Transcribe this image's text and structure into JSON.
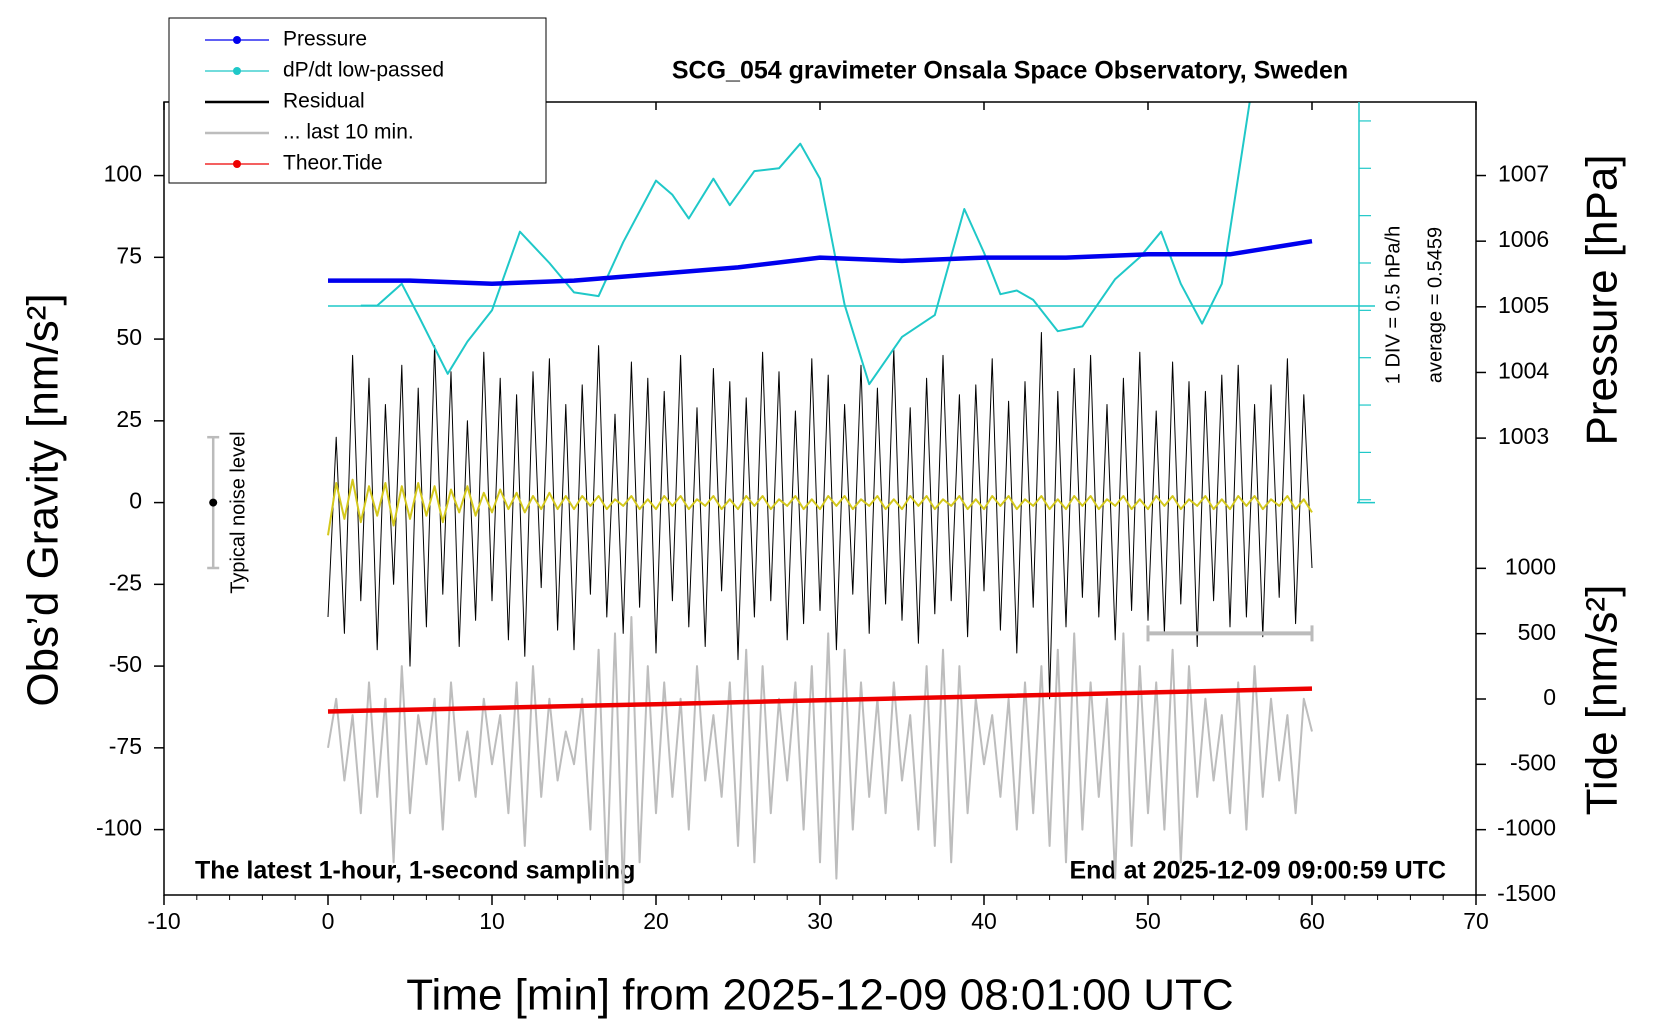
{
  "chart_data": {
    "type": "line",
    "title": "SCG_054 gravimeter Onsala Space Observatory, Sweden",
    "xlabel": "Time [min] from 2025-12-09 08:01:00 UTC",
    "ylabel": "Obs’d Gravity [nm/s²]",
    "y2label": "Pressure [hPa]",
    "y3label": "Tide [nm/s²]",
    "annotations": [
      "The latest 1-hour, 1-second sampling",
      "End at 2025-12-09 09:00:59 UTC",
      "1 DIV = 0.5 hPa/h"
    ],
    "average": {
      "value": 0.5459,
      "label": "average = 0.5459"
    },
    "noise_bar": {
      "x": -7,
      "low": -20,
      "high": 20,
      "center": 0,
      "label": "Typical noise level"
    },
    "scale_bar": {
      "x": [
        50,
        60
      ],
      "y": -40
    },
    "legend": "upper left",
    "xlim": [
      -10,
      70
    ],
    "xticks": [
      -10,
      0,
      10,
      20,
      30,
      40,
      50,
      60,
      70
    ],
    "ylim": [
      -120,
      122.5
    ],
    "yticks": [
      -100,
      -75,
      -50,
      -25,
      0,
      25,
      50,
      75,
      100
    ],
    "y2lim": [
      996.04,
      1008.12
    ],
    "y2ticks": [
      1003,
      1004,
      1005,
      1006,
      1007
    ],
    "y3lim": [
      -1500,
      4569
    ],
    "y3ticks": [
      -1500,
      -1000,
      -500,
      0,
      500,
      1000
    ],
    "y4lim": [
      -1.53,
      2.7
    ],
    "y4ticks": [
      -1.5,
      -1,
      -0.5,
      0,
      0.5,
      1,
      1.5,
      2,
      2.5
    ],
    "x": [
      0,
      0.5,
      1,
      1.5,
      2,
      2.5,
      3,
      3.5,
      4,
      4.5,
      5,
      5.5,
      6,
      6.5,
      7,
      7.5,
      8,
      8.5,
      9,
      9.5,
      10,
      10.5,
      11,
      11.5,
      12,
      12.5,
      13,
      13.5,
      14,
      14.5,
      15,
      15.5,
      16,
      16.5,
      17,
      17.5,
      18,
      18.5,
      19,
      19.5,
      20,
      20.5,
      21,
      21.5,
      22,
      22.5,
      23,
      23.5,
      24,
      24.5,
      25,
      25.5,
      26,
      26.5,
      27,
      27.5,
      28,
      28.5,
      29,
      29.5,
      30,
      30.5,
      31,
      31.5,
      32,
      32.5,
      33,
      33.5,
      34,
      34.5,
      35,
      35.5,
      36,
      36.5,
      37,
      37.5,
      38,
      38.5,
      39,
      39.5,
      40,
      40.5,
      41,
      41.5,
      42,
      42.5,
      43,
      43.5,
      44,
      44.5,
      45,
      45.5,
      46,
      46.5,
      47,
      47.5,
      48,
      48.5,
      49,
      49.5,
      50,
      50.5,
      51,
      51.5,
      52,
      52.5,
      53,
      53.5,
      54,
      54.5,
      55,
      55.5,
      56,
      56.5,
      57,
      57.5,
      58,
      58.5,
      59,
      59.5,
      60
    ],
    "series": [
      {
        "name": "Pressure",
        "color": "#0000ee",
        "axis": "y2",
        "marker": true,
        "x": [
          0,
          5,
          10,
          15,
          20,
          25,
          30,
          35,
          40,
          45,
          50,
          55,
          60
        ],
        "values": [
          1005.4,
          1005.4,
          1005.35,
          1005.4,
          1005.5,
          1005.6,
          1005.75,
          1005.7,
          1005.75,
          1005.75,
          1005.8,
          1005.8,
          1006.0
        ]
      },
      {
        "name": "dP/dt low-passed",
        "color": "#1fc8c8",
        "axis": "y4",
        "marker": true,
        "x": [
          2,
          3,
          4.5,
          5.5,
          7.3,
          8.5,
          10,
          11.7,
          13.5,
          15,
          16.5,
          18,
          20,
          21,
          22,
          23.5,
          24.5,
          26,
          27.5,
          28.8,
          30,
          31.5,
          33,
          35,
          37,
          38.8,
          40,
          41,
          42,
          43,
          44.5,
          46,
          48,
          49.5,
          50.8,
          52,
          53.3,
          54.5,
          56.2
        ],
        "values": [
          0.55,
          0.55,
          0.78,
          0.45,
          -0.17,
          0.17,
          0.5,
          1.33,
          1.0,
          0.69,
          0.65,
          1.22,
          1.87,
          1.72,
          1.47,
          1.89,
          1.61,
          1.97,
          2.0,
          2.26,
          1.89,
          0.56,
          -0.28,
          0.22,
          0.45,
          1.57,
          1.11,
          0.67,
          0.71,
          0.61,
          0.28,
          0.33,
          0.83,
          1.06,
          1.33,
          0.78,
          0.36,
          0.78,
          2.7
        ]
      },
      {
        "name": "Residual",
        "color": "#000000",
        "axis": "y",
        "values": [
          -35,
          20,
          -40,
          45,
          -30,
          38,
          -45,
          30,
          -25,
          42,
          -50,
          35,
          -38,
          48,
          -28,
          40,
          -44,
          25,
          -36,
          46,
          -30,
          38,
          -42,
          33,
          -47,
          40,
          -26,
          44,
          -39,
          30,
          -45,
          36,
          -28,
          48,
          -35,
          27,
          -40,
          43,
          -32,
          38,
          -46,
          34,
          -30,
          45,
          -38,
          29,
          -44,
          41,
          -27,
          37,
          -48,
          32,
          -35,
          46,
          -30,
          40,
          -42,
          28,
          -37,
          44,
          -33,
          39,
          -45,
          30,
          -28,
          42,
          -40,
          35,
          -31,
          47,
          -36,
          29,
          -43,
          38,
          -34,
          45,
          -30,
          33,
          -41,
          36,
          -27,
          44,
          -39,
          31,
          -46,
          37,
          -32,
          52,
          -60,
          34,
          -38,
          41,
          -29,
          45,
          -35,
          30,
          -42,
          38,
          -33,
          46,
          -36,
          28,
          -40,
          43,
          -31,
          37,
          -44,
          34,
          -30,
          39,
          -38,
          42,
          -35,
          30,
          -41,
          36,
          -29,
          44,
          -37,
          33,
          -20
        ]
      },
      {
        "name": "... last 10 min.",
        "color": "#bdbdbd",
        "axis": "y",
        "values": [
          -75,
          -60,
          -85,
          -65,
          -95,
          -55,
          -90,
          -60,
          -110,
          -50,
          -95,
          -65,
          -80,
          -60,
          -100,
          -55,
          -85,
          -70,
          -90,
          -60,
          -80,
          -65,
          -95,
          -55,
          -105,
          -50,
          -90,
          -60,
          -85,
          -70,
          -80,
          -60,
          -100,
          -45,
          -115,
          -40,
          -120,
          -35,
          -110,
          -50,
          -95,
          -55,
          -90,
          -60,
          -100,
          -50,
          -85,
          -65,
          -90,
          -55,
          -105,
          -45,
          -110,
          -50,
          -95,
          -60,
          -85,
          -55,
          -100,
          -50,
          -110,
          -40,
          -115,
          -45,
          -100,
          -55,
          -90,
          -60,
          -95,
          -55,
          -85,
          -65,
          -100,
          -50,
          -105,
          -45,
          -110,
          -50,
          -95,
          -60,
          -80,
          -65,
          -90,
          -60,
          -100,
          -55,
          -95,
          -50,
          -105,
          -45,
          -110,
          -40,
          -100,
          -55,
          -90,
          -60,
          -115,
          -40,
          -105,
          -50,
          -95,
          -55,
          -100,
          -45,
          -110,
          -50,
          -90,
          -60,
          -85,
          -65,
          -95,
          -55,
          -100,
          -50,
          -90,
          -60,
          -85,
          -65,
          -95,
          -60,
          -70
        ]
      },
      {
        "color": "#d4c81c",
        "axis": "y",
        "values": [
          -10,
          6,
          -5,
          7,
          -6,
          5,
          -4,
          6,
          -7,
          5,
          -5,
          6,
          -4,
          5,
          -6,
          4,
          -3,
          5,
          -4,
          3,
          -3,
          4,
          -2,
          3,
          -3,
          2,
          -2,
          3,
          -2,
          2,
          -2,
          2,
          -1,
          2,
          -2,
          1,
          -1,
          2,
          -2,
          1,
          -2,
          2,
          -1,
          2,
          -2,
          1,
          -1,
          2,
          -2,
          1,
          -2,
          2,
          -1,
          2,
          -2,
          1,
          -1,
          2,
          -2,
          1,
          -2,
          2,
          -1,
          2,
          -2,
          1,
          -1,
          2,
          -2,
          1,
          -2,
          2,
          -1,
          2,
          -2,
          1,
          -1,
          2,
          -2,
          1,
          -2,
          2,
          -1,
          2,
          -2,
          1,
          -1,
          2,
          -2,
          1,
          -2,
          2,
          -1,
          2,
          -2,
          1,
          -1,
          2,
          -2,
          1,
          -2,
          2,
          -1,
          2,
          -2,
          1,
          -1,
          2,
          -2,
          1,
          -2,
          2,
          -1,
          2,
          -2,
          1,
          -1,
          2,
          -2,
          1,
          -3
        ]
      },
      {
        "name": "Theor.Tide",
        "color": "#ee0000",
        "axis": "y3",
        "marker": true,
        "x": [
          0,
          20,
          40,
          60
        ],
        "values": [
          -96,
          -40,
          20,
          80
        ]
      }
    ]
  }
}
